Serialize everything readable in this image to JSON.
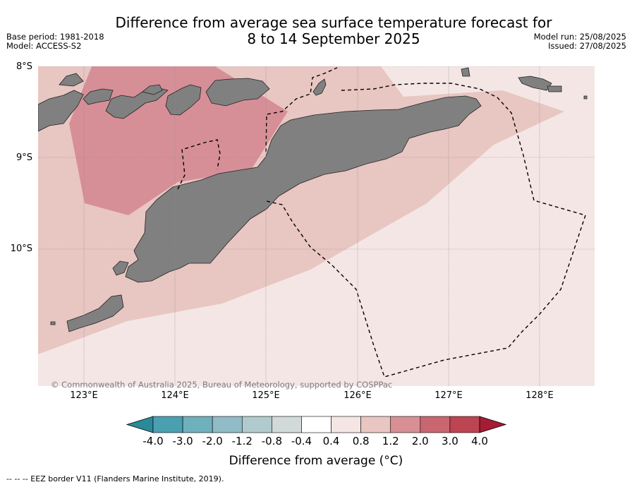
{
  "title": {
    "line1": "Difference from average sea surface temperature forecast for",
    "line2": "8 to 14 September 2025"
  },
  "meta": {
    "base_period": "Base period: 1981-2018",
    "model": "Model: ACCESS-S2",
    "model_run": "Model run: 25/08/2025",
    "issued": "Issued: 27/08/2025"
  },
  "axes": {
    "lat_labels": [
      "8°S",
      "9°S",
      "10°S"
    ],
    "lon_labels": [
      "123°E",
      "124°E",
      "125°E",
      "126°E",
      "127°E",
      "128°E"
    ]
  },
  "copyright": "© Commonwealth of Australia 2025, Bureau of Meteorology, supported by COSPPac",
  "colorbar": {
    "title": "Difference from average (°C)",
    "ticks": [
      "-4.0",
      "-3.0",
      "-2.0",
      "-1.2",
      "-0.8",
      "-0.4",
      "0.4",
      "0.8",
      "1.2",
      "2.0",
      "3.0",
      "4.0"
    ],
    "colors": [
      "#2b8a9a",
      "#4aa0b0",
      "#6fb0bd",
      "#8fbcc6",
      "#b0cacd",
      "#d2dad9",
      "#ffffff",
      "#f5e6e4",
      "#e9c6c1",
      "#d98f96",
      "#c96670",
      "#bd4452",
      "#a51c35"
    ]
  },
  "footer": "-- -- -- EEZ border V11 (Flanders Marine Institute, 2019).",
  "map_colors": {
    "ocean_low": "#f4e6e4",
    "ocean_mid": "#e8c6c2",
    "ocean_high": "#d78f97",
    "land": "#808080"
  }
}
